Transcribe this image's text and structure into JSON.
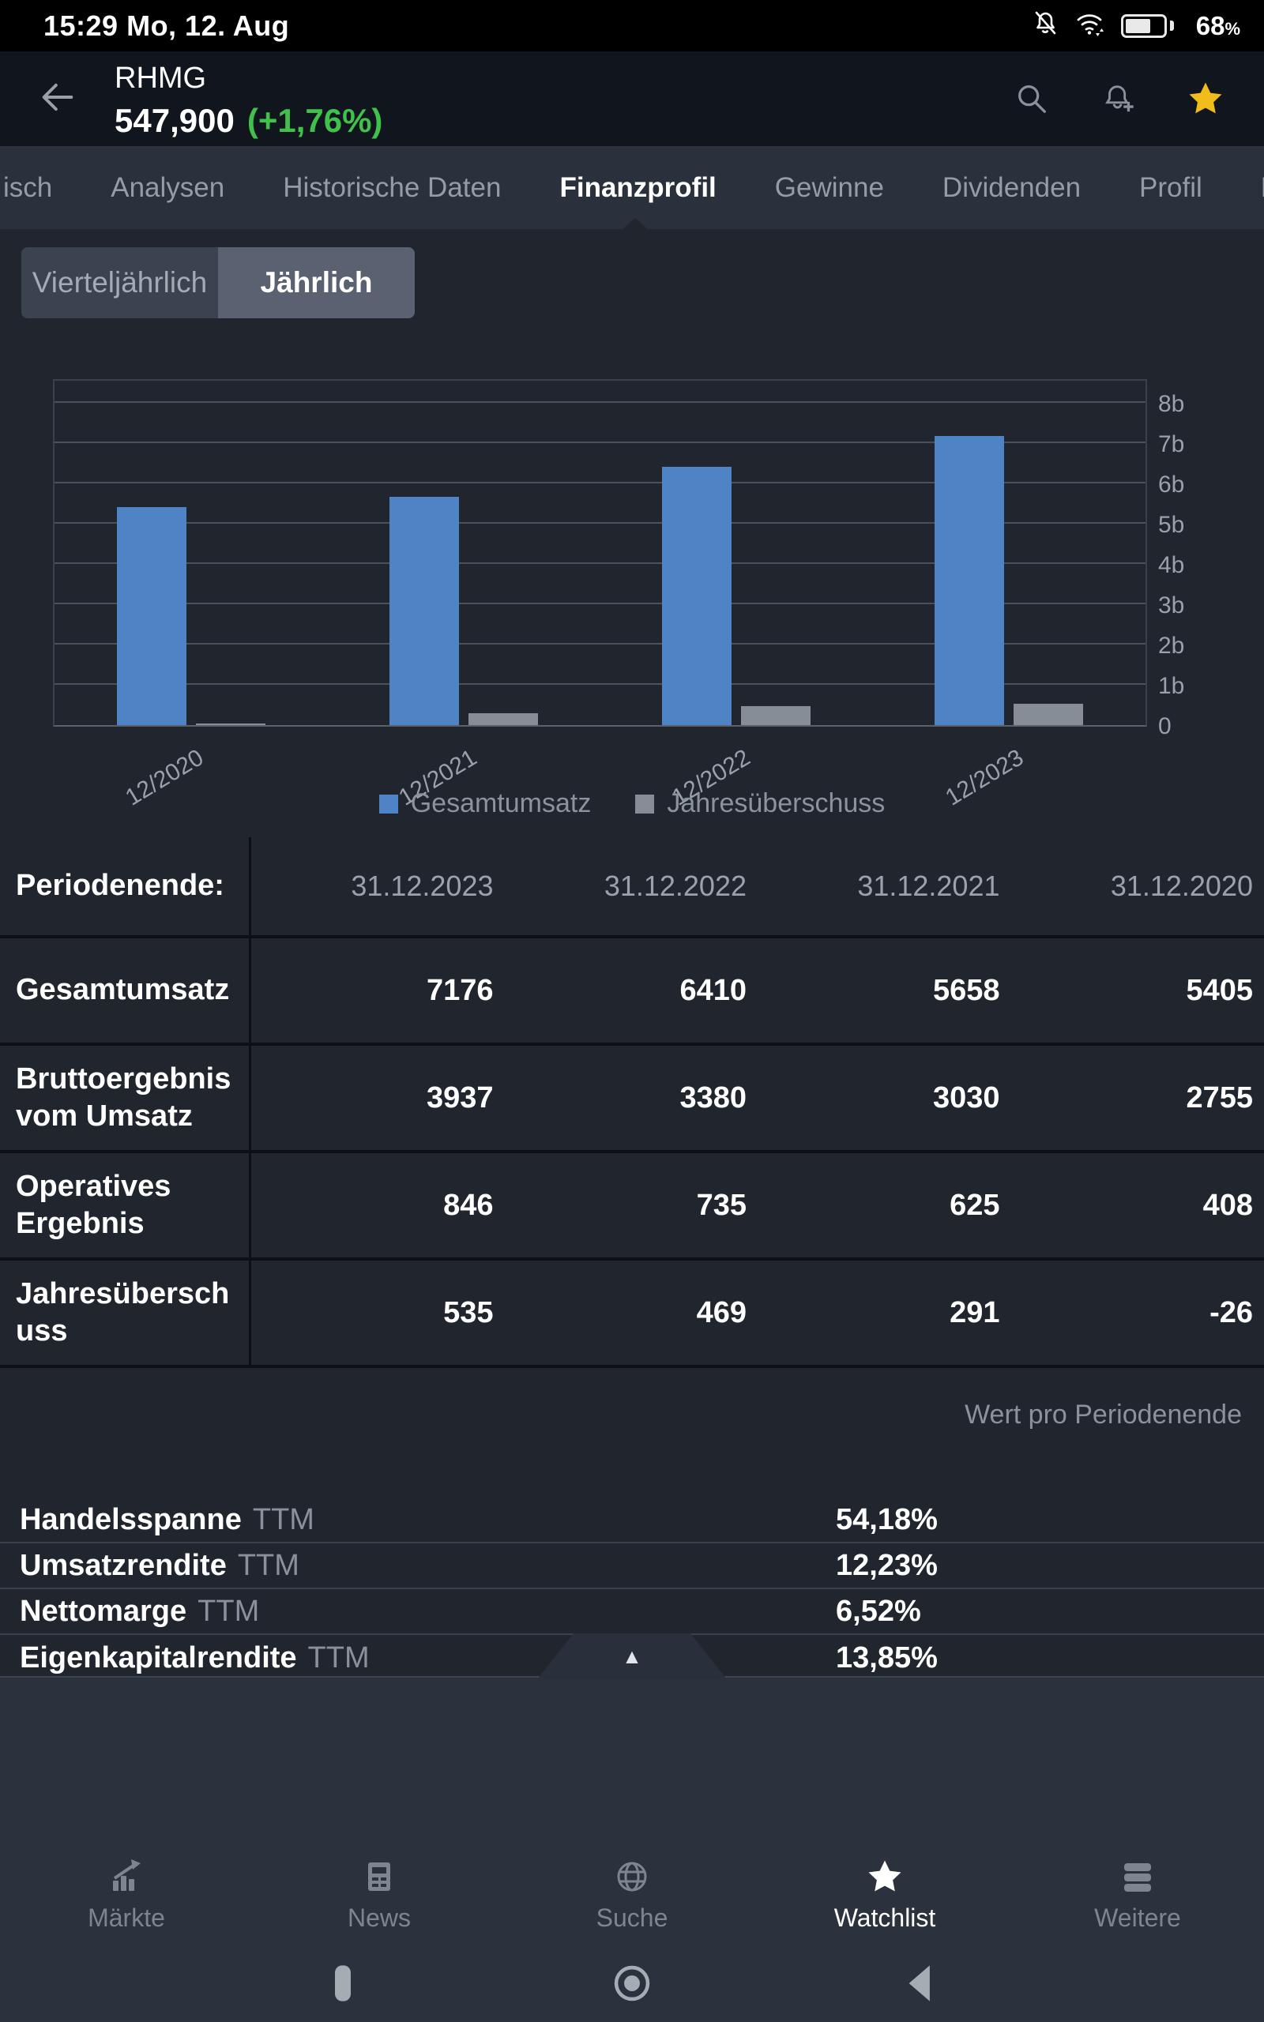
{
  "status_bar": {
    "time": "15:29 Mo, 12. Aug",
    "battery_level": "68",
    "battery_unit": "%",
    "icons": [
      "notifications-muted-icon",
      "wifi-icon",
      "battery-icon"
    ]
  },
  "header": {
    "symbol": "RHMG",
    "price": "547,900",
    "change": "(+1,76%)",
    "change_color": "#3fc14b",
    "star_color": "#f2bc1a",
    "icons": [
      "search-icon",
      "bell-plus-icon",
      "star-icon"
    ]
  },
  "tabs": {
    "items": [
      {
        "label": "isch",
        "active": false
      },
      {
        "label": "Analysen",
        "active": false
      },
      {
        "label": "Historische Daten",
        "active": false
      },
      {
        "label": "Finanzprofil",
        "active": true
      },
      {
        "label": "Gewinne",
        "active": false
      },
      {
        "label": "Dividenden",
        "active": false
      },
      {
        "label": "Profil",
        "active": false
      },
      {
        "label": "K",
        "active": false
      }
    ]
  },
  "period_toggle": {
    "options": [
      "Vierteljährlich",
      "Jährlich"
    ],
    "selected": "Jährlich"
  },
  "chart_data": {
    "type": "bar",
    "categories": [
      "12/2020",
      "12/2021",
      "12/2022",
      "12/2023"
    ],
    "series": [
      {
        "name": "Gesamtumsatz",
        "color": "#4e84c5",
        "values": [
          5.405,
          5.658,
          6.41,
          7.176
        ]
      },
      {
        "name": "Jahresüberschuss",
        "color": "#868d96",
        "values": [
          -0.026,
          0.291,
          0.469,
          0.535
        ]
      }
    ],
    "unit": "b",
    "ylim": [
      0,
      8
    ],
    "ytick_labels": [
      "0",
      "1b",
      "2b",
      "3b",
      "4b",
      "5b",
      "6b",
      "7b",
      "8b"
    ],
    "grid": true,
    "legend_position": "bottom"
  },
  "financials_table": {
    "header_label": "Periodenende:",
    "periods": [
      "31.12.2023",
      "31.12.2022",
      "31.12.2021",
      "31.12.2020"
    ],
    "rows": [
      {
        "label": "Gesamtumsatz",
        "values": [
          "7176",
          "6410",
          "5658",
          "5405"
        ]
      },
      {
        "label": "Bruttoergebnis vom Umsatz",
        "values": [
          "3937",
          "3380",
          "3030",
          "2755"
        ]
      },
      {
        "label": "Operatives Ergebnis",
        "values": [
          "846",
          "735",
          "625",
          "408"
        ]
      },
      {
        "label": "Jahresüberschuss",
        "values": [
          "535",
          "469",
          "291",
          "-26"
        ]
      }
    ],
    "footnote": "Wert pro Periodenende"
  },
  "ratios": [
    {
      "label": "Handelsspanne",
      "period": "TTM",
      "value": "54,18%"
    },
    {
      "label": "Umsatzrendite",
      "period": "TTM",
      "value": "12,23%"
    },
    {
      "label": "Nettomarge",
      "period": "TTM",
      "value": "6,52%"
    },
    {
      "label": "Eigenkapitalrendite",
      "period": "TTM",
      "value": "13,85%"
    }
  ],
  "expand_handle": {
    "icon": "chevron-up-icon",
    "glyph": "▲"
  },
  "bottom_nav": {
    "items": [
      {
        "label": "Märkte",
        "icon": "markets-chart-icon",
        "active": false
      },
      {
        "label": "News",
        "icon": "news-icon",
        "active": false
      },
      {
        "label": "Suche",
        "icon": "globe-icon",
        "active": false
      },
      {
        "label": "Watchlist",
        "icon": "star-icon",
        "active": true
      },
      {
        "label": "Weitere",
        "icon": "more-menu-icon",
        "active": false
      }
    ]
  },
  "android_nav": {
    "buttons": [
      "recents-button",
      "home-button",
      "back-button"
    ]
  }
}
